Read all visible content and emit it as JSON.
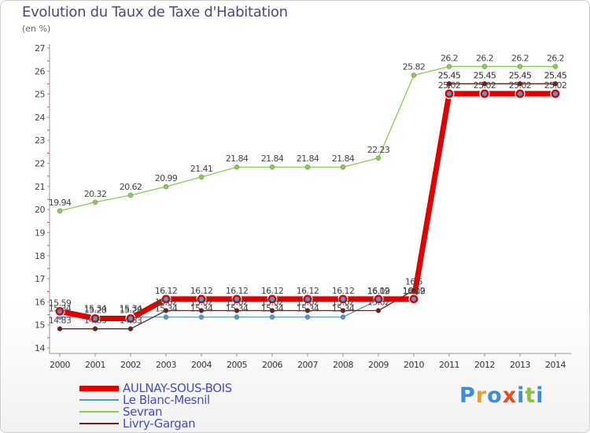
{
  "chart_data": {
    "type": "line",
    "title": "Evolution du Taux de Taxe d'Habitation",
    "subtitle": "(en %)",
    "x": [
      "2000",
      "2001",
      "2002",
      "2003",
      "2004",
      "2005",
      "2006",
      "2007",
      "2008",
      "2009",
      "2010",
      "2011",
      "2012",
      "2013",
      "2014"
    ],
    "ylim": [
      14,
      27
    ],
    "yticks": [
      "14",
      "15",
      "16",
      "17",
      "18",
      "19",
      "20",
      "21",
      "22",
      "23",
      "24",
      "25",
      "26",
      "27"
    ],
    "grid": false,
    "legend_position": "bottom-left",
    "series": [
      {
        "name": "AULNAY-SOUS-BOIS",
        "color": "#e00000",
        "values": [
          15.59,
          15.28,
          15.28,
          16.12,
          16.12,
          16.12,
          16.12,
          16.12,
          16.12,
          16.12,
          16.12,
          25.02,
          25.02,
          25.02,
          25.02
        ],
        "labels": [
          "15.59",
          "15.28",
          "15.28",
          "16.12",
          "16.12",
          "16.12",
          "16.12",
          "16.12",
          "16.12",
          "16.12",
          "16.12",
          "25.02",
          "25.02",
          "25.02",
          "25.02"
        ]
      },
      {
        "name": "Le Blanc-Mesnil",
        "color": "#5599cc",
        "values": [
          15.34,
          15.34,
          15.34,
          15.34,
          15.34,
          15.34,
          15.34,
          15.34,
          15.34,
          16.09,
          16.09,
          25.45,
          25.45,
          25.45,
          25.45
        ],
        "labels": [
          "15.34",
          "15.34",
          "15.34",
          "15.34",
          "15.34",
          "15.34",
          "15.34",
          "15.34",
          "15.34",
          "16.09",
          "16.09",
          "25.45",
          "25.45",
          "25.45",
          "25.45"
        ]
      },
      {
        "name": "Sevran",
        "color": "#88cc55",
        "values": [
          19.94,
          20.32,
          20.62,
          20.99,
          21.41,
          21.84,
          21.84,
          21.84,
          21.84,
          22.23,
          25.82,
          26.2,
          26.2,
          26.2,
          26.2
        ],
        "labels": [
          "19.94",
          "20.32",
          "20.62",
          "20.99",
          "21.41",
          "21.84",
          "21.84",
          "21.84",
          "21.84",
          "22.23",
          "25.82",
          "26.2",
          "26.2",
          "26.2",
          "26.2"
        ]
      },
      {
        "name": "Livry-Gargan",
        "color": "#6b2020",
        "values": [
          14.83,
          14.83,
          14.83,
          15.62,
          15.62,
          15.62,
          15.62,
          15.62,
          15.62,
          15.62,
          16.5,
          25.45,
          25.45,
          25.45,
          25.45
        ],
        "labels": [
          "14.83",
          "14.83",
          "14.83",
          "15.62",
          "15.62",
          "15.62",
          "15.62",
          "15.62",
          "15.62",
          "15.62",
          "16.5",
          "25.45",
          "25.45",
          "25.45",
          "25.45"
        ]
      }
    ]
  },
  "logo": {
    "text": "Proxiti"
  }
}
